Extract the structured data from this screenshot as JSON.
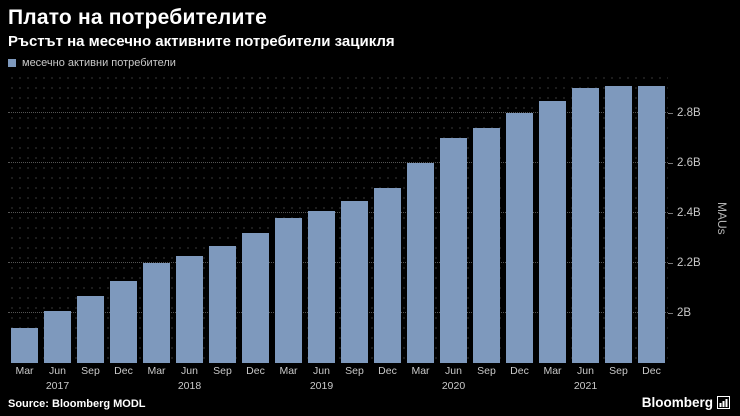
{
  "header": {
    "title": "Плато на потребителите",
    "subtitle": "Ръстът на месечно активните потребители зацикля"
  },
  "legend": {
    "label": "месечно активни потребители",
    "swatch_color": "#7e99bd"
  },
  "chart_data": {
    "type": "bar",
    "title": "Плато на потребителите",
    "subtitle": "Ръстът на месечно активните потребители зацикля",
    "series_name": "месечно активни потребители",
    "x": [
      "Mar",
      "Jun",
      "Sep",
      "Dec",
      "Mar",
      "Jun",
      "Sep",
      "Dec",
      "Mar",
      "Jun",
      "Sep",
      "Dec",
      "Mar",
      "Jun",
      "Sep",
      "Dec",
      "Mar",
      "Jun",
      "Sep",
      "Dec"
    ],
    "years": [
      "2017",
      "2018",
      "2019",
      "2020",
      "2021"
    ],
    "values": [
      1.94,
      2.01,
      2.07,
      2.13,
      2.2,
      2.23,
      2.27,
      2.32,
      2.38,
      2.41,
      2.45,
      2.5,
      2.6,
      2.7,
      2.74,
      2.8,
      2.85,
      2.9,
      2.91,
      2.91
    ],
    "unit": "B",
    "ylabel": "MAUs",
    "ylim": [
      1.8,
      2.96
    ],
    "yticks": [
      2.0,
      2.2,
      2.4,
      2.6,
      2.8
    ],
    "ytick_labels": [
      "2B",
      "2.2B",
      "2.4B",
      "2.6B",
      "2.8B"
    ],
    "bar_color": "#7e99bd",
    "grid": true,
    "legend_position": "top-left"
  },
  "footer": {
    "source": "Source: Bloomberg MODL",
    "logo": "Bloomberg"
  }
}
